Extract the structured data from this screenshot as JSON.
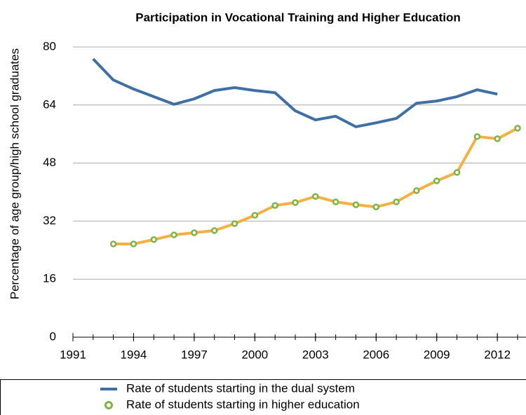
{
  "chart_data": {
    "type": "line",
    "title": "Participation in Vocational Training and Higher Education",
    "y_label": "Percentage of age group/high school graduates",
    "x": [
      1992,
      1993,
      1994,
      1995,
      1996,
      1997,
      1998,
      1999,
      2000,
      2001,
      2002,
      2003,
      2004,
      2005,
      2006,
      2007,
      2008,
      2009,
      2010,
      2011,
      2012,
      2013
    ],
    "series": [
      {
        "name": "Rate of students starting in the dual system",
        "color": "#3e6fa5",
        "values": [
          76.7,
          70.9,
          68.4,
          66.3,
          64.2,
          65.7,
          68,
          68.8,
          68,
          67.4,
          62.4,
          59.9,
          60.9,
          58,
          59.1,
          60.3,
          64.5,
          65.1,
          66.3,
          68.2,
          67,
          null
        ]
      },
      {
        "name": "Rate of students starting in higher education",
        "color": "#f5b041",
        "marker_color": "#7cb342",
        "values": [
          null,
          25.7,
          25.7,
          26.9,
          28.2,
          28.8,
          29.4,
          31.3,
          33.6,
          36.3,
          37.1,
          38.8,
          37.3,
          36.5,
          35.9,
          37.3,
          40.4,
          43.1,
          45.4,
          55.3,
          54.7,
          57.6
        ]
      }
    ],
    "xlim": [
      1991,
      2013
    ],
    "xticks": [
      1991,
      1994,
      1997,
      2000,
      2003,
      2006,
      2009,
      2012
    ],
    "ylim": [
      0,
      80
    ],
    "yticks": [
      0,
      16,
      32,
      48,
      64,
      80
    ],
    "grid": true,
    "legend": "bottom"
  }
}
